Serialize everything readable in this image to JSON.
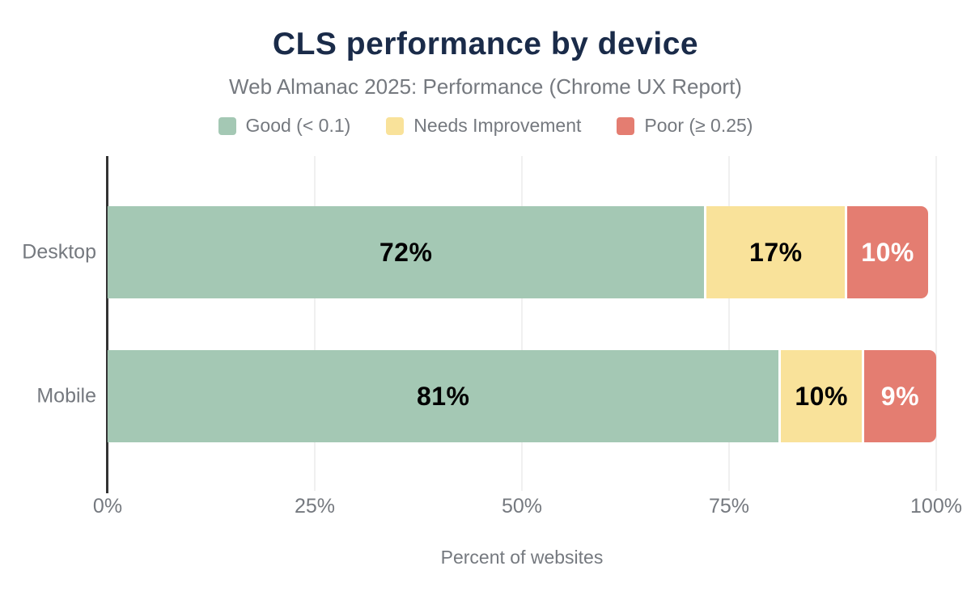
{
  "chart_data": {
    "type": "bar",
    "orientation": "horizontal",
    "stacked": true,
    "title": "CLS performance by device",
    "subtitle": "Web Almanac 2025: Performance (Chrome UX Report)",
    "xlabel": "Percent of websites",
    "categories": [
      "Desktop",
      "Mobile"
    ],
    "series": [
      {
        "name": "Good (< 0.1)",
        "color": "#a4c8b4",
        "label_color": "#000000",
        "values": [
          72,
          81
        ]
      },
      {
        "name": "Needs Improvement",
        "color": "#f9e29a",
        "label_color": "#000000",
        "values": [
          17,
          10
        ]
      },
      {
        "name": "Poor (≥ 0.25)",
        "color": "#e47d71",
        "label_color": "#ffffff",
        "values": [
          10,
          9
        ]
      }
    ],
    "value_label_suffix": "%",
    "xlim": [
      0,
      100
    ],
    "x_ticks": [
      {
        "label": "0%",
        "value": 0
      },
      {
        "label": "25%",
        "value": 25
      },
      {
        "label": "50%",
        "value": 50
      },
      {
        "label": "75%",
        "value": 75
      },
      {
        "label": "100%",
        "value": 100
      }
    ],
    "grid": true,
    "legend_position": "top",
    "colors": {
      "title": "#1a2b49",
      "text_muted": "#75797f",
      "axis_line": "#333333",
      "gridline": "#f0f0f0",
      "background": "#ffffff"
    }
  }
}
